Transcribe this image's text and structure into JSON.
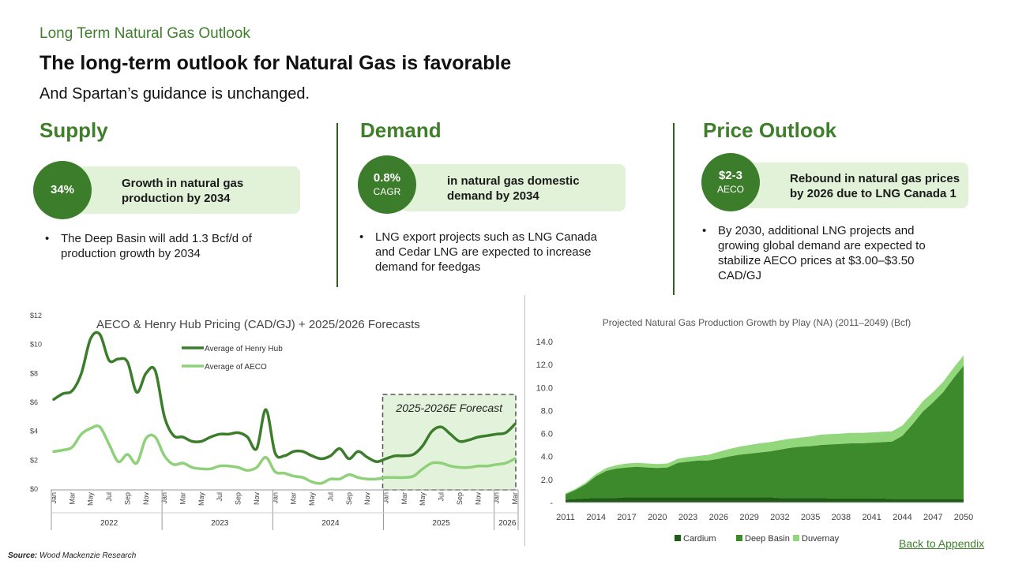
{
  "header": {
    "kicker": "Long Term Natural Gas Outlook",
    "headline": "The long-term outlook for Natural Gas is favorable",
    "subhead": "And Spartan’s guidance is unchanged."
  },
  "columns": [
    {
      "title": "Supply",
      "stat_main": "34%",
      "stat_sub": "",
      "pill_text": [
        "Growth in natural gas",
        "production by 2034"
      ],
      "bullet": [
        "The Deep Basin will add 1.3 Bcf/d of",
        "production growth by 2034"
      ]
    },
    {
      "title": "Demand",
      "stat_main": "0.8%",
      "stat_sub": "CAGR",
      "pill_text": [
        "in natural gas domestic",
        "demand by 2034"
      ],
      "bullet": [
        "LNG export projects such as LNG Canada",
        "and Cedar LNG are expected to increase",
        "demand for feedgas"
      ]
    },
    {
      "title": "Price Outlook",
      "stat_main": "$2-3",
      "stat_sub": "AECO",
      "pill_text": [
        "Rebound in natural gas prices",
        "by 2026 due to LNG Canada 1"
      ],
      "bullet": [
        "By 2030, additional LNG projects and",
        "growing global demand are expected to",
        "stabilize AECO prices at $3.00–$3.50",
        "CAD/GJ"
      ]
    }
  ],
  "colors": {
    "dark_green": "#3c7d2c",
    "light_green": "#8fd07a",
    "pill_bg": "#e2f2d9",
    "forecast_bg": "#e3f3db"
  },
  "bullet_char": "•",
  "chart_data": [
    {
      "type": "line",
      "title": "AECO & Henry Hub Pricing (CAD/GJ) + 2025/2026 Forecasts",
      "xlabel": "",
      "ylabel": "",
      "ylim": [
        0,
        12
      ],
      "y_ticks": [
        "$0",
        "$2",
        "$4",
        "$6",
        "$8",
        "$10",
        "$12"
      ],
      "x_tick_labels": [
        "Jan",
        "Mar",
        "May",
        "Jul",
        "Sep",
        "Nov",
        "Jan",
        "Mar",
        "May",
        "Jul",
        "Sep",
        "Nov",
        "Jan",
        "Mar",
        "May",
        "Jul",
        "Sep",
        "Nov",
        "Jan",
        "Mar",
        "May",
        "Jul",
        "Sep",
        "Nov",
        "Jan",
        "Mar",
        "May",
        "Jul",
        "Sep",
        "Nov"
      ],
      "years": [
        "2022",
        "2023",
        "2024",
        "2025",
        "2026"
      ],
      "legend_placement": "top-left",
      "forecast_label": "2025-2026E Forecast",
      "series": [
        {
          "name": "Average of Henry Hub",
          "color": "#3c7d2c",
          "values": [
            6.2,
            6.6,
            6.8,
            8.0,
            10.4,
            10.7,
            8.9,
            9.0,
            8.8,
            6.7,
            8.0,
            8.2,
            5.0,
            3.7,
            3.6,
            3.3,
            3.3,
            3.6,
            3.8,
            3.8,
            3.9,
            3.6,
            2.8,
            5.5,
            2.5,
            2.3,
            2.6,
            2.6,
            2.3,
            2.1,
            2.3,
            2.8,
            2.1,
            2.6,
            2.2,
            1.9,
            2.1,
            2.3,
            2.3,
            2.4,
            3.0,
            4.0,
            4.3,
            3.8,
            3.3,
            3.4,
            3.6,
            3.7,
            3.8,
            3.9,
            4.5
          ]
        },
        {
          "name": "Average of AECO",
          "color": "#8fd07a",
          "values": [
            2.6,
            2.7,
            2.9,
            3.8,
            4.2,
            4.3,
            3.1,
            1.9,
            2.4,
            1.8,
            3.5,
            3.6,
            2.3,
            1.7,
            1.8,
            1.5,
            1.4,
            1.4,
            1.6,
            1.6,
            1.5,
            1.3,
            1.5,
            2.2,
            1.2,
            1.1,
            0.9,
            0.8,
            0.5,
            0.4,
            0.7,
            0.7,
            1.0,
            0.8,
            0.7,
            0.7,
            0.8,
            0.8,
            0.8,
            0.9,
            1.4,
            1.8,
            1.8,
            1.6,
            1.5,
            1.5,
            1.6,
            1.6,
            1.7,
            1.8,
            2.1
          ]
        }
      ]
    },
    {
      "type": "area",
      "title": "Projected Natural Gas Production Growth by Play (NA) (2011–2049) (Bcf)",
      "xlabel": "",
      "ylabel": "",
      "ylim": [
        0,
        14
      ],
      "y_ticks": [
        "-",
        "2.0",
        "4.0",
        "6.0",
        "8.0",
        "10.0",
        "12.0",
        "14.0"
      ],
      "x_ticks": [
        "2011",
        "2014",
        "2017",
        "2020",
        "2023",
        "2026",
        "2029",
        "2032",
        "2035",
        "2038",
        "2041",
        "2044",
        "2047",
        "2050"
      ],
      "x": [
        2011,
        2012,
        2013,
        2014,
        2015,
        2016,
        2017,
        2018,
        2019,
        2020,
        2021,
        2022,
        2023,
        2024,
        2025,
        2026,
        2027,
        2028,
        2029,
        2030,
        2031,
        2032,
        2033,
        2034,
        2035,
        2036,
        2037,
        2038,
        2039,
        2040,
        2041,
        2042,
        2043,
        2044,
        2045,
        2046,
        2047,
        2048,
        2049,
        2050
      ],
      "legend_placement": "bottom",
      "series": [
        {
          "name": "Cardium",
          "color": "#1f5b14",
          "values": [
            0.25,
            0.3,
            0.35,
            0.4,
            0.4,
            0.4,
            0.45,
            0.45,
            0.45,
            0.45,
            0.45,
            0.45,
            0.45,
            0.45,
            0.45,
            0.45,
            0.45,
            0.45,
            0.45,
            0.45,
            0.45,
            0.4,
            0.4,
            0.4,
            0.4,
            0.4,
            0.35,
            0.35,
            0.35,
            0.35,
            0.35,
            0.35,
            0.3,
            0.3,
            0.3,
            0.3,
            0.3,
            0.3,
            0.3,
            0.3
          ]
        },
        {
          "name": "Deep Basin",
          "color": "#3c8a2c",
          "values": [
            0.45,
            0.8,
            1.25,
            1.9,
            2.35,
            2.55,
            2.6,
            2.65,
            2.6,
            2.55,
            2.6,
            3.0,
            3.1,
            3.2,
            3.2,
            3.35,
            3.55,
            3.7,
            3.8,
            3.9,
            4.0,
            4.2,
            4.35,
            4.45,
            4.5,
            4.6,
            4.7,
            4.75,
            4.8,
            4.8,
            4.85,
            4.9,
            5.0,
            5.5,
            6.5,
            7.6,
            8.4,
            9.3,
            10.5,
            11.6
          ]
        },
        {
          "name": "Duvernay",
          "color": "#93d77c",
          "values": [
            0.1,
            0.1,
            0.15,
            0.2,
            0.25,
            0.3,
            0.35,
            0.35,
            0.35,
            0.35,
            0.35,
            0.35,
            0.4,
            0.4,
            0.5,
            0.6,
            0.65,
            0.7,
            0.75,
            0.8,
            0.8,
            0.8,
            0.8,
            0.8,
            0.85,
            0.9,
            0.9,
            0.9,
            0.9,
            0.9,
            0.9,
            0.9,
            0.9,
            0.9,
            0.9,
            0.9,
            0.9,
            0.9,
            0.9,
            0.9
          ]
        }
      ]
    }
  ],
  "footer": {
    "source_label": "Source:",
    "source_text": " Wood Mackenzie Research",
    "back_link": "Back to Appendix"
  }
}
